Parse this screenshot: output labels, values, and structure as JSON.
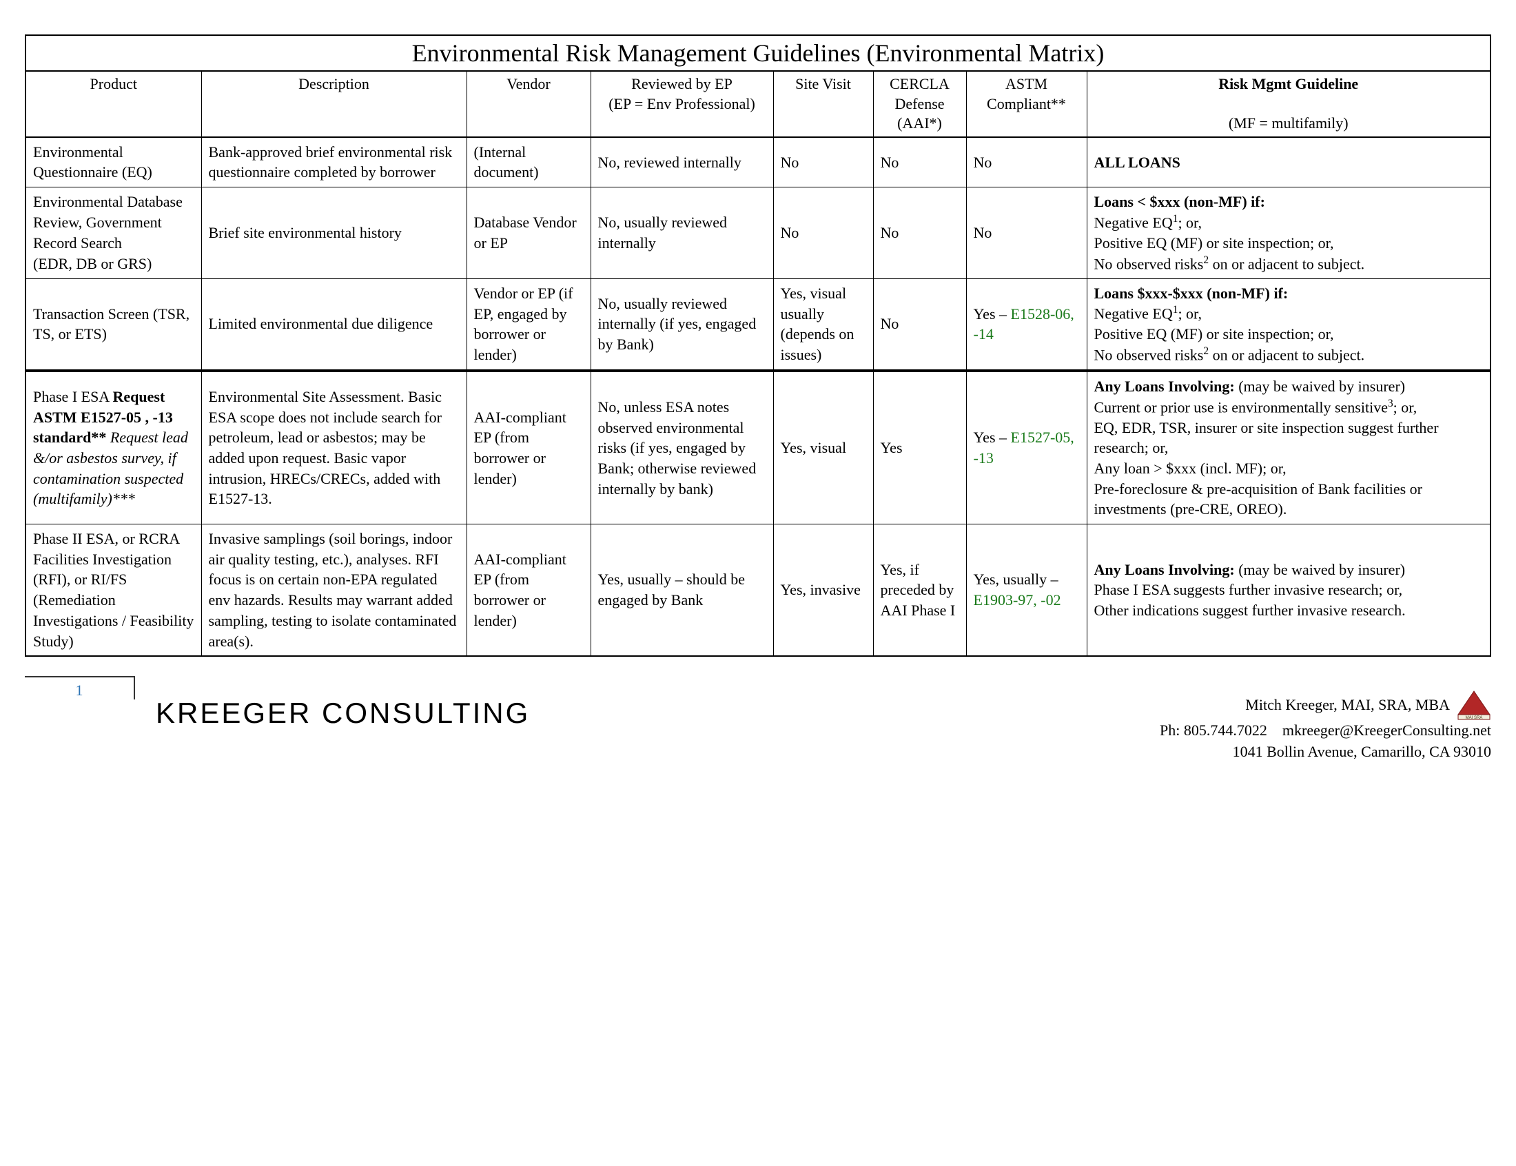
{
  "title": "Environmental Risk Management Guidelines (Environmental Matrix)",
  "columns": {
    "product": "Product",
    "description": "Description",
    "vendor": "Vendor",
    "reviewed": "Reviewed by EP",
    "reviewed_sub": "(EP = Env Professional)",
    "site": "Site Visit",
    "cercla": "CERCLA Defense (AAI*)",
    "astm": "ASTM Compliant**",
    "risk_bold": "Risk Mgmt Guideline",
    "risk_sub": "(MF = multifamily)"
  },
  "rows": [
    {
      "product_html": "Environmental Questionnaire (EQ)",
      "description_html": "Bank-approved brief environmental risk questionnaire completed by borrower",
      "vendor_html": "(Internal document)",
      "reviewed_html": "No, reviewed internally",
      "site_html": "No",
      "cercla_html": "No",
      "astm_html": "No",
      "risk_html": "<b>ALL LOANS</b>"
    },
    {
      "product_html": "Environmental Database Review, Government Record Search<br>(EDR, DB or GRS)",
      "description_html": "Brief site environmental history",
      "vendor_html": "Database Vendor or EP",
      "reviewed_html": "No, usually reviewed internally",
      "site_html": "No",
      "cercla_html": "No",
      "astm_html": "No",
      "risk_html": "<b>Loans &lt; $xxx (non-MF) if:</b><br>Negative EQ<sup>1</sup>; or,<br>Positive EQ (MF) or site inspection; or,<br>No observed risks<sup>2</sup> on or adjacent to subject."
    },
    {
      "product_html": "Transaction Screen (TSR, TS, or ETS)",
      "description_html": "Limited environmental due diligence",
      "vendor_html": "Vendor or EP (if EP, engaged by borrower or lender)",
      "reviewed_html": "No, usually reviewed internally (if yes, engaged by Bank)",
      "site_html": "Yes, visual usually (depends on issues)",
      "cercla_html": "No",
      "astm_html": "Yes – <span class=\"green\">E1528-06, -14</span>",
      "risk_html": "<b>Loans $xxx-$xxx (non-MF) if:</b><br>Negative EQ<sup>1</sup>; or,<br>Positive EQ (MF) or site inspection; or,<br>No observed risks<sup>2</sup> on or adjacent to subject."
    },
    {
      "section_divider": true,
      "product_html": "Phase I ESA <b>Request ASTM E1527-05 , -13 standard**</b> <i>Request lead &/or asbestos survey, if contamination suspected (multifamily)***</i>",
      "description_html": "Environmental Site Assessment.  Basic ESA scope does not include search for petroleum, lead or asbestos; may be added upon request.  Basic vapor intrusion, HRECs/CRECs, added with E1527-13.",
      "vendor_html": "AAI-compliant EP (from borrower or lender)",
      "reviewed_html": "No, unless ESA notes observed environmental risks (if yes, engaged by Bank; otherwise reviewed internally by bank)",
      "site_html": "Yes, visual",
      "cercla_html": "Yes",
      "astm_html": "Yes – <span class=\"green\">E1527-05, -13</span>",
      "risk_html": "<b>Any Loans Involving:</b>  (may be waived by insurer)<br>Current or prior use is environmentally sensitive<sup>3</sup>; or,<br>EQ, EDR, TSR, insurer or site inspection suggest further research; or,<br>Any loan &gt; $xxx (incl. MF); or,<br>Pre-foreclosure &amp; pre-acquisition of Bank facilities or investments (pre-CRE, OREO)."
    },
    {
      "product_html": "Phase II ESA, or RCRA Facilities Investigation (RFI), or RI/FS (Remediation Investigations / Feasibility Study)",
      "description_html": "Invasive samplings (soil borings, indoor air quality testing, etc.), analyses.  RFI focus is on certain non-EPA regulated env hazards.  Results may warrant added sampling, testing to isolate contaminated area(s).",
      "vendor_html": "AAI-compliant EP (from borrower or lender)",
      "reviewed_html": "Yes, usually – should be engaged by Bank",
      "site_html": "Yes, invasive",
      "cercla_html": "Yes, if preceded by AAI Phase I",
      "astm_html": "Yes, usually – <span class=\"green\">E1903-97, -02</span>",
      "risk_html": "<b>Any Loans Involving:</b>  (may be waived by insurer)<br>Phase I ESA suggests further invasive research; or,<br>Other indications suggest further invasive research."
    }
  ],
  "footer": {
    "page_number": "1",
    "brand": "KREEGER CONSULTING",
    "name": "Mitch Kreeger, MAI, SRA, MBA",
    "phone": "Ph: 805.744.7022",
    "email": "mkreeger@KreegerConsulting.net",
    "address": "1041 Bollin Avenue, Camarillo, CA 93010",
    "logo_label": "MAI SRA"
  }
}
